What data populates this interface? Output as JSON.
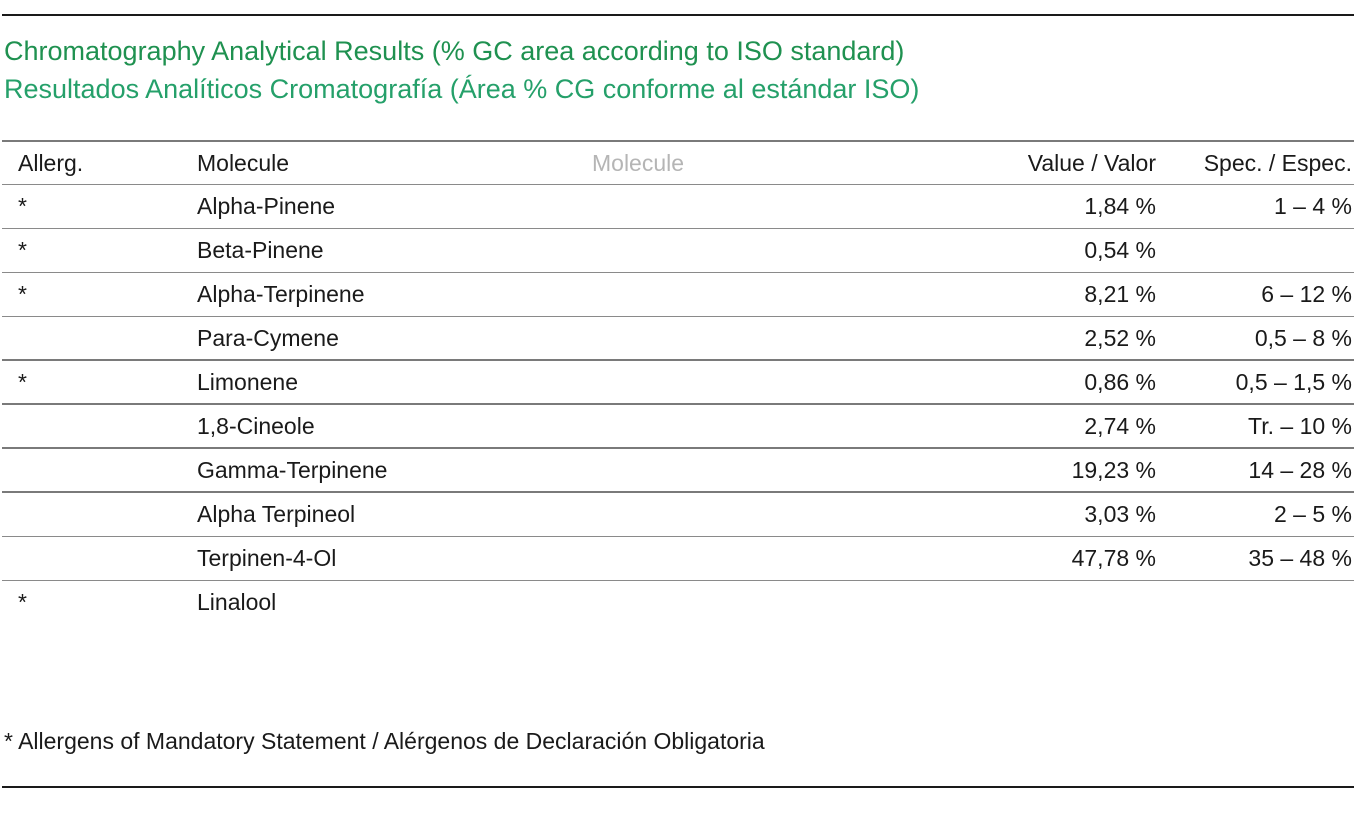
{
  "title": {
    "english": "Chromatography Analytical Results (% GC area according to ISO standard)",
    "spanish": "Resultados Analíticos Cromatografía (Área % CG conforme al estándar ISO)"
  },
  "colors": {
    "title_english": "#1f9150",
    "title_spanish": "#25a06a",
    "faded_header": "#b5b5b5"
  },
  "table": {
    "headers": {
      "allerg": "Allerg.",
      "molecule": "Molecule",
      "molecule_faded": "Molecule",
      "value": "Value / Valor",
      "spec": "Spec. / Espec."
    },
    "rows": [
      {
        "allerg": "*",
        "molecule": "Alpha-Pinene",
        "value": "1,84 %",
        "spec": "1 – 4 %"
      },
      {
        "allerg": "*",
        "molecule": "Beta-Pinene",
        "value": "0,54 %",
        "spec": ""
      },
      {
        "allerg": "*",
        "molecule": "Alpha-Terpinene",
        "value": "8,21 %",
        "spec": "6 – 12 %"
      },
      {
        "allerg": "",
        "molecule": "Para-Cymene",
        "value": "2,52 %",
        "spec": "0,5 – 8 %"
      },
      {
        "allerg": "*",
        "molecule": "Limonene",
        "value": "0,86 %",
        "spec": "0,5 – 1,5 %"
      },
      {
        "allerg": "",
        "molecule": "1,8-Cineole",
        "value": "2,74 %",
        "spec": "Tr. – 10 %"
      },
      {
        "allerg": "",
        "molecule": "Gamma-Terpinene",
        "value": "19,23 %",
        "spec": "14 – 28 %"
      },
      {
        "allerg": "",
        "molecule": "Alpha Terpineol",
        "value": "3,03 %",
        "spec": "2 – 5 %"
      },
      {
        "allerg": "",
        "molecule": "Terpinen-4-Ol",
        "value": "47,78 %",
        "spec": "35 – 48 %"
      },
      {
        "allerg": "*",
        "molecule": "Linalool",
        "value": "",
        "spec": ""
      }
    ]
  },
  "footnote": "* Allergens of Mandatory Statement / Alérgenos de Declaración Obligatoria"
}
